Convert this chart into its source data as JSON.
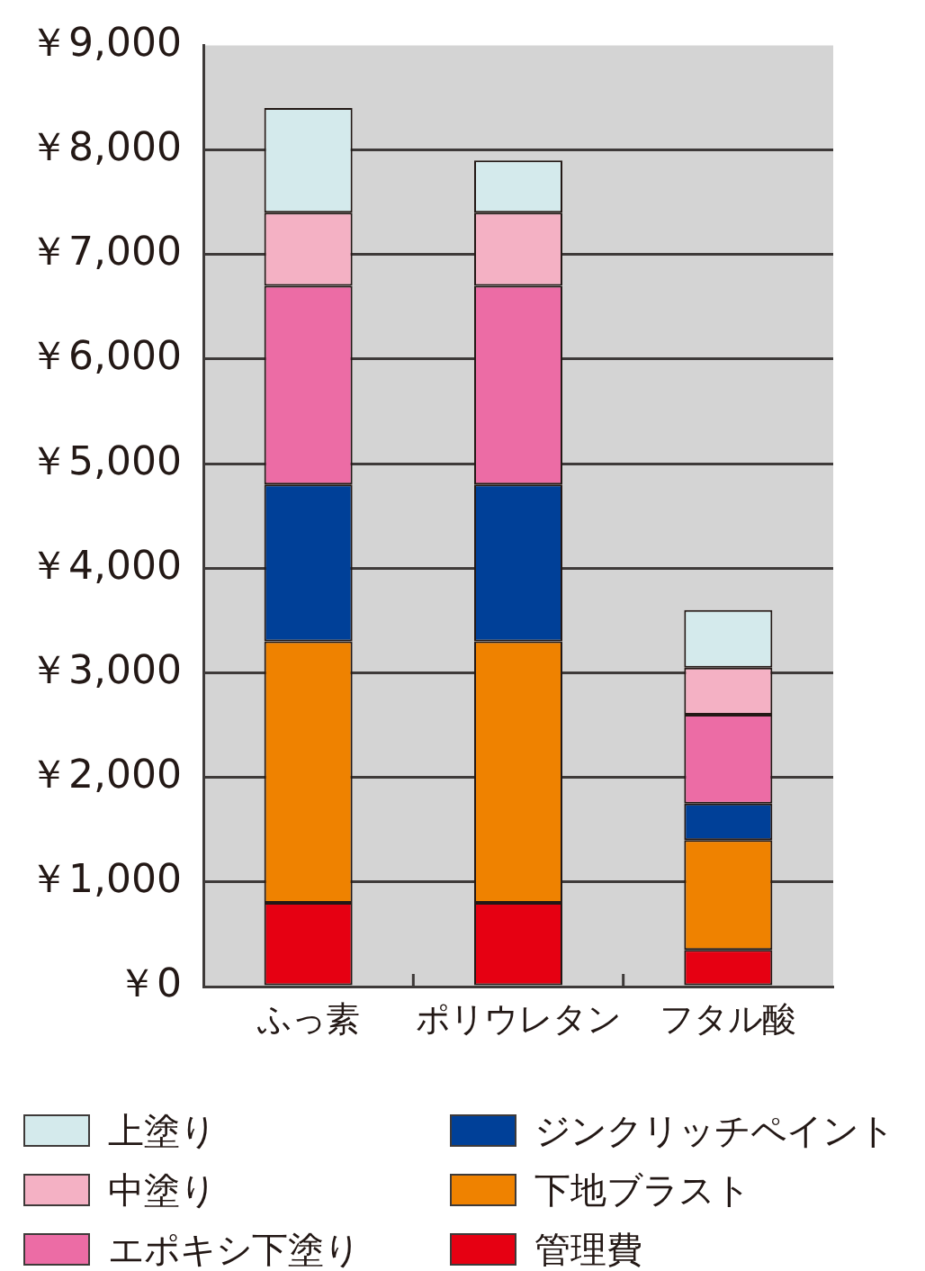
{
  "chart_data": {
    "type": "bar",
    "categories": [
      "ふっ素",
      "ポリウレタン",
      "フタル酸"
    ],
    "series": [
      {
        "name": "管理費",
        "color": "#e60012",
        "values": [
          800,
          800,
          350
        ]
      },
      {
        "name": "下地ブラスト",
        "color": "#ef8200",
        "values": [
          2500,
          2500,
          1050
        ]
      },
      {
        "name": "ジンクリッチペイント",
        "color": "#004098",
        "values": [
          1500,
          1500,
          350
        ]
      },
      {
        "name": "エポキシ下塗り",
        "color": "#ec6ca5",
        "values": [
          1900,
          1900,
          850
        ]
      },
      {
        "name": "中塗り",
        "color": "#f4b1c4",
        "values": [
          700,
          700,
          450
        ]
      },
      {
        "name": "上塗り",
        "color": "#d4eaec",
        "values": [
          1000,
          500,
          550
        ]
      }
    ],
    "stacked": true,
    "ylim": [
      0,
      9000
    ],
    "yticks": [
      {
        "value": 0,
        "label": "￥0"
      },
      {
        "value": 1000,
        "label": "￥1,000"
      },
      {
        "value": 2000,
        "label": "￥2,000"
      },
      {
        "value": 3000,
        "label": "￥3,000"
      },
      {
        "value": 4000,
        "label": "￥4,000"
      },
      {
        "value": 5000,
        "label": "￥5,000"
      },
      {
        "value": 6000,
        "label": "￥6,000"
      },
      {
        "value": 7000,
        "label": "￥7,000"
      },
      {
        "value": 8000,
        "label": "￥8,000"
      },
      {
        "value": 9000,
        "label": "￥9,000"
      }
    ],
    "grid": "y",
    "legend": "bottom"
  }
}
